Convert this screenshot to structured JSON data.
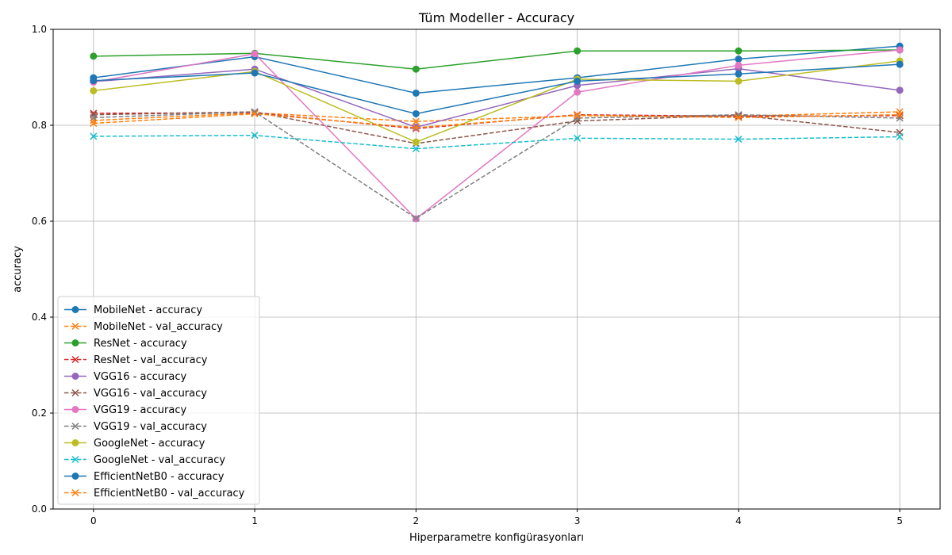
{
  "chart_data": {
    "type": "line",
    "title": "Tüm Modeller - Accuracy",
    "xlabel": "Hiperparametre konfigürasyonları",
    "ylabel": "accuracy",
    "x": [
      0,
      1,
      2,
      3,
      4,
      5
    ],
    "xlim": [
      -0.25,
      5.25
    ],
    "ylim": [
      0,
      1
    ],
    "yticks": [
      "0.0",
      "0.2",
      "0.4",
      "0.6",
      "0.8",
      "1.0"
    ],
    "xticks": [
      "0",
      "1",
      "2",
      "3",
      "4",
      "5"
    ],
    "grid": true,
    "legend_position": "lower-left",
    "series": [
      {
        "name": "MobileNet - accuracy",
        "color": "#1f77b4",
        "style": "solid",
        "marker": "circle",
        "values": [
          0.899,
          0.943,
          0.867,
          0.899,
          0.938,
          0.965
        ]
      },
      {
        "name": "MobileNet - val_accuracy",
        "color": "#ff7f0e",
        "style": "dashed",
        "marker": "x",
        "values": [
          0.81,
          0.826,
          0.808,
          0.82,
          0.819,
          0.828
        ]
      },
      {
        "name": "ResNet - accuracy",
        "color": "#2ca02c",
        "style": "solid",
        "marker": "circle",
        "values": [
          0.944,
          0.95,
          0.917,
          0.955,
          0.955,
          0.957
        ]
      },
      {
        "name": "ResNet - val_accuracy",
        "color": "#d62728",
        "style": "dashed",
        "marker": "x",
        "values": [
          0.825,
          0.826,
          0.793,
          0.822,
          0.819,
          0.82
        ]
      },
      {
        "name": "VGG16 - accuracy",
        "color": "#9467bd",
        "style": "solid",
        "marker": "circle",
        "values": [
          0.891,
          0.917,
          0.796,
          0.883,
          0.918,
          0.873
        ]
      },
      {
        "name": "VGG16 - val_accuracy",
        "color": "#8c564b",
        "style": "dashed",
        "marker": "x",
        "values": [
          0.822,
          0.828,
          0.762,
          0.809,
          0.821,
          0.785
        ]
      },
      {
        "name": "VGG19 - accuracy",
        "color": "#e377c2",
        "style": "solid",
        "marker": "circle",
        "values": [
          0.89,
          0.949,
          0.605,
          0.869,
          0.925,
          0.957
        ]
      },
      {
        "name": "VGG19 - val_accuracy",
        "color": "#7f7f7f",
        "style": "dashed",
        "marker": "x",
        "values": [
          0.816,
          0.828,
          0.606,
          0.815,
          0.822,
          0.815
        ]
      },
      {
        "name": "GoogleNet - accuracy",
        "color": "#bcbd22",
        "style": "solid",
        "marker": "circle",
        "values": [
          0.872,
          0.912,
          0.765,
          0.896,
          0.892,
          0.934
        ]
      },
      {
        "name": "GoogleNet - val_accuracy",
        "color": "#17becf",
        "style": "dashed",
        "marker": "x",
        "values": [
          0.777,
          0.779,
          0.751,
          0.773,
          0.771,
          0.776
        ]
      },
      {
        "name": "EfficientNetB0 - accuracy",
        "color": "#1f77b4",
        "style": "solid",
        "marker": "circle",
        "values": [
          0.893,
          0.909,
          0.824,
          0.892,
          0.907,
          0.927
        ]
      },
      {
        "name": "EfficientNetB0 - val_accuracy",
        "color": "#ff7f0e",
        "style": "dashed",
        "marker": "x",
        "values": [
          0.804,
          0.824,
          0.795,
          0.821,
          0.816,
          0.822
        ]
      }
    ]
  }
}
